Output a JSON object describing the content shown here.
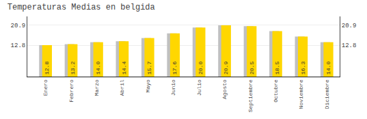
{
  "chart_data": {
    "type": "bar",
    "title": "Temperaturas Medias en belgida",
    "categories": [
      "Enero",
      "Febrero",
      "Marzo",
      "Abril",
      "Mayo",
      "Junio",
      "Julio",
      "Agosto",
      "Septiembre",
      "Octubre",
      "Noviembre",
      "Diciembre"
    ],
    "values": [
      12.8,
      13.2,
      14.0,
      14.4,
      15.7,
      17.6,
      20.0,
      20.9,
      20.5,
      18.5,
      16.3,
      14.0
    ],
    "value_labels": [
      "12.8",
      "13.2",
      "14.0",
      "14.4",
      "15.7",
      "17.6",
      "20.0",
      "20.9",
      "20.5",
      "18.5",
      "16.3",
      "14.0"
    ],
    "color": "#FFD700",
    "ylim": [
      0.0,
      24.5
    ],
    "yticks": [
      12.8,
      20.9
    ],
    "grid": true,
    "data_labels": true
  }
}
